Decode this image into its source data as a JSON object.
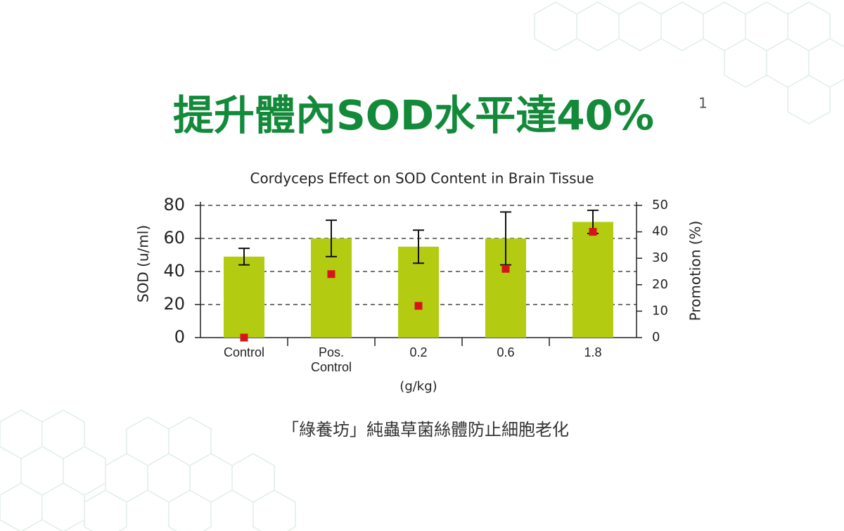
{
  "header": {
    "title": "提升體內SOD水平達40%",
    "footnote": "1"
  },
  "chart_data": {
    "type": "bar",
    "title": "Cordyceps Effect on SOD Content in Brain Tissue",
    "xlabel": "(g/kg)",
    "ylabel": "SOD (u/ml)",
    "y2label": "Promotion (%)",
    "categories": [
      "Control",
      "Pos. Control",
      "0.2",
      "0.6",
      "1.8"
    ],
    "series": [
      {
        "type": "bar",
        "color": "#b3cc12",
        "values": [
          49,
          60,
          55,
          60,
          70
        ],
        "errors": [
          5,
          11,
          10,
          16,
          7
        ]
      },
      {
        "type": "scatter",
        "axis": "y2",
        "color": "#d7141b",
        "values": [
          0,
          24,
          12,
          26,
          40
        ]
      }
    ],
    "ylim": [
      0,
      80
    ],
    "yticks": [
      0,
      20,
      40,
      60,
      80
    ],
    "y2lim": [
      0,
      50
    ],
    "y2ticks": [
      0,
      10,
      20,
      30,
      40,
      50
    ],
    "grid": true
  },
  "caption": "「綠養坊」純蟲草菌絲體防止細胞老化"
}
